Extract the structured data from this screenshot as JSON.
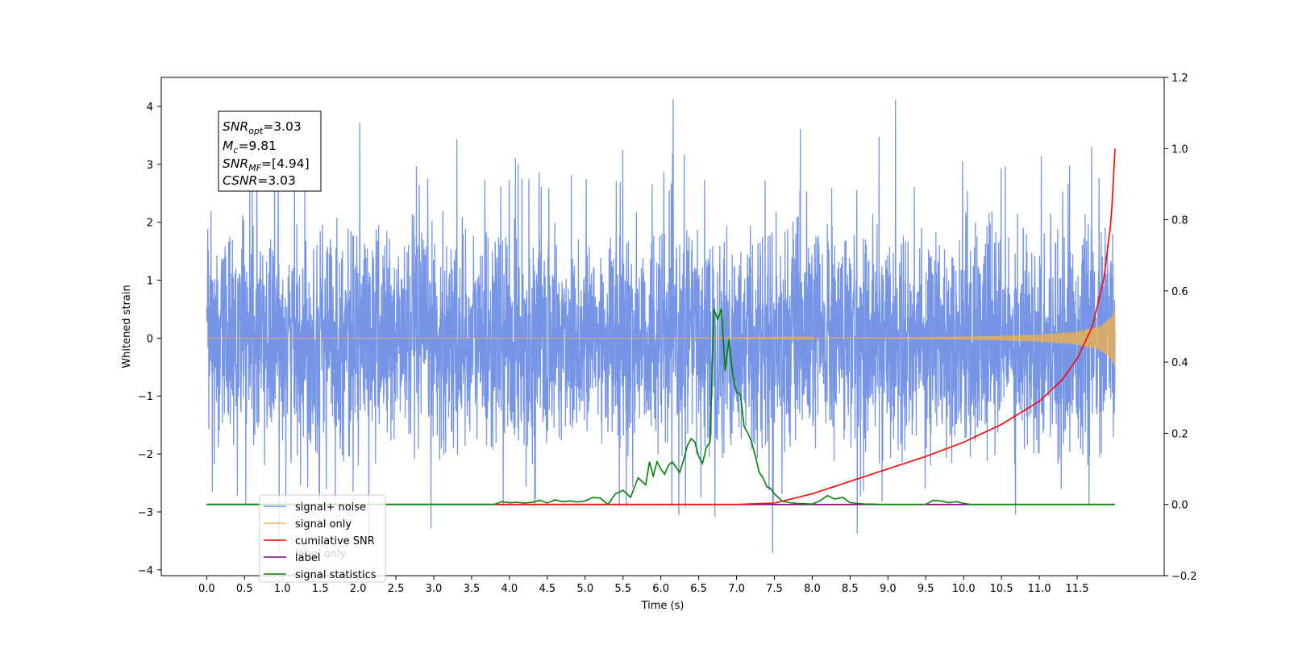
{
  "chart_data": {
    "type": "line",
    "xlabel": "Time (s)",
    "ylabel": "Whitened strain",
    "xlim": [
      -0.6,
      12.65
    ],
    "ylim": [
      -4.1,
      4.5
    ],
    "y2lim": [
      -0.2,
      1.2
    ],
    "x_ticks": [
      "0.0",
      "0.5",
      "1.0",
      "1.5",
      "2.0",
      "2.5",
      "3.0",
      "3.5",
      "4.0",
      "4.5",
      "5.0",
      "5.5",
      "6.0",
      "6.5",
      "7.0",
      "7.5",
      "8.0",
      "8.5",
      "9.0",
      "9.5",
      "10.0",
      "10.5",
      "11.0",
      "11.5"
    ],
    "y_ticks": [
      4,
      3,
      2,
      1,
      0,
      -1,
      -2,
      -3,
      -4
    ],
    "y2_ticks": [
      "1.2",
      "1.0",
      "0.8",
      "0.6",
      "0.4",
      "0.2",
      "0.0",
      "−0.2"
    ],
    "annotation": {
      "snr_opt": "=3.03",
      "mc": "=9.81",
      "snr_mf": "=[4.94]",
      "csnr": "=3.03"
    },
    "legend": {
      "placement": "lower-left",
      "entries": [
        {
          "label": "signal+ noise",
          "color": "#6f8fe6"
        },
        {
          "label": "signal only",
          "color": "#f5b24a"
        },
        {
          "label": "cumilative SNR",
          "color": "#ff0000"
        },
        {
          "label": "label",
          "color": "#800080"
        },
        {
          "label": "signal statistics",
          "color": "#008000"
        }
      ],
      "hidden_label": "label only"
    },
    "series": [
      {
        "name": "signal+ noise",
        "axis": "left",
        "color": "#6f8fe6",
        "description_range": [
          0.0,
          12.0
        ],
        "envelope": {
          "low": -2.9,
          "high": 2.9,
          "max_spike": 4.12,
          "min_spike": -3.72
        }
      },
      {
        "name": "signal only",
        "axis": "left",
        "color": "#f5b24a",
        "x": [
          0.0,
          6.0,
          8.0,
          9.0,
          10.0,
          10.5,
          11.0,
          11.5,
          11.8,
          11.95,
          12.0
        ],
        "amp": [
          0.0,
          0.0,
          0.005,
          0.01,
          0.025,
          0.04,
          0.06,
          0.11,
          0.2,
          0.35,
          0.5
        ]
      },
      {
        "name": "cumilative SNR",
        "axis": "right",
        "color": "#ff0000",
        "x": [
          0.0,
          7.0,
          7.5,
          8.0,
          8.5,
          9.0,
          9.5,
          10.0,
          10.5,
          11.0,
          11.3,
          11.5,
          11.7,
          11.85,
          11.95,
          12.0
        ],
        "y": [
          0.0,
          0.0,
          0.004,
          0.03,
          0.065,
          0.1,
          0.135,
          0.175,
          0.225,
          0.29,
          0.35,
          0.41,
          0.5,
          0.63,
          0.8,
          1.0
        ]
      },
      {
        "name": "label",
        "axis": "right",
        "color": "#800080",
        "x": [
          0.0,
          12.0
        ],
        "y": [
          0.0,
          0.0
        ]
      },
      {
        "name": "signal statistics",
        "axis": "right",
        "color": "#008000",
        "x": [
          0.0,
          3.8,
          3.9,
          4.0,
          4.1,
          4.2,
          4.3,
          4.4,
          4.5,
          4.6,
          4.7,
          4.8,
          4.9,
          5.0,
          5.1,
          5.2,
          5.3,
          5.4,
          5.5,
          5.6,
          5.7,
          5.75,
          5.8,
          5.85,
          5.9,
          5.95,
          6.0,
          6.05,
          6.1,
          6.15,
          6.2,
          6.25,
          6.3,
          6.35,
          6.4,
          6.45,
          6.5,
          6.55,
          6.6,
          6.65,
          6.7,
          6.75,
          6.8,
          6.85,
          6.9,
          6.95,
          7.0,
          7.05,
          7.1,
          7.15,
          7.2,
          7.25,
          7.3,
          7.35,
          7.4,
          7.45,
          7.5,
          7.6,
          7.7,
          7.8,
          7.9,
          8.0,
          8.1,
          8.2,
          8.3,
          8.4,
          8.5,
          8.6,
          8.7,
          8.8,
          8.9,
          9.0,
          9.5,
          9.6,
          9.7,
          9.8,
          9.9,
          10.0,
          10.1,
          10.2,
          12.0
        ],
        "y": [
          0.0,
          0.0,
          0.008,
          0.005,
          0.006,
          0.004,
          0.006,
          0.012,
          0.004,
          0.013,
          0.008,
          0.01,
          0.007,
          0.01,
          0.02,
          0.018,
          0.0,
          0.03,
          0.04,
          0.02,
          0.075,
          0.065,
          0.055,
          0.12,
          0.08,
          0.12,
          0.1,
          0.085,
          0.11,
          0.12,
          0.105,
          0.09,
          0.125,
          0.165,
          0.185,
          0.175,
          0.135,
          0.115,
          0.16,
          0.175,
          0.55,
          0.52,
          0.55,
          0.375,
          0.465,
          0.365,
          0.315,
          0.31,
          0.22,
          0.2,
          0.175,
          0.135,
          0.09,
          0.075,
          0.05,
          0.045,
          0.03,
          0.01,
          0.005,
          0.003,
          0.002,
          0.001,
          0.01,
          0.025,
          0.015,
          0.02,
          0.005,
          0.003,
          0.001,
          0.001,
          0.0,
          0.0,
          0.0,
          0.012,
          0.01,
          0.005,
          0.008,
          0.003,
          0.0,
          0.0,
          0.0
        ]
      }
    ]
  }
}
